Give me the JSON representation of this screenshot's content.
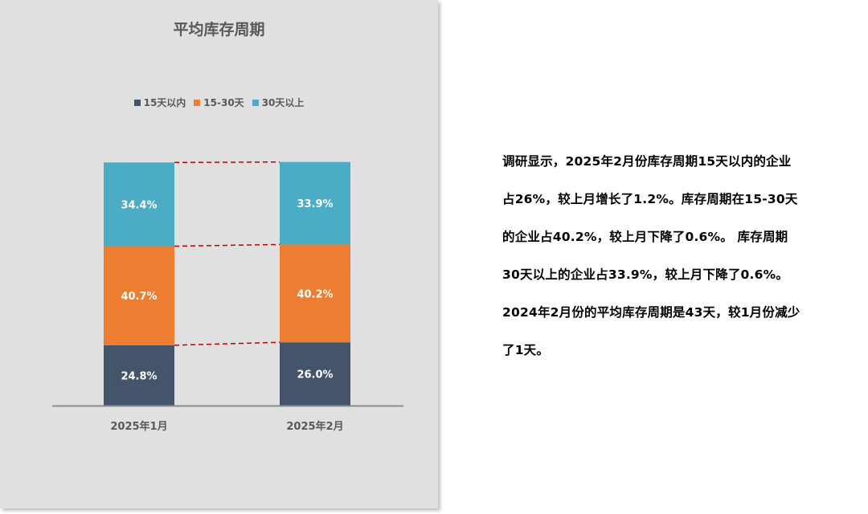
{
  "chart_data": {
    "type": "bar",
    "stacked": true,
    "percent": true,
    "title": "平均库存周期",
    "categories": [
      "2025年1月",
      "2025年2月"
    ],
    "series": [
      {
        "name": "15天以内",
        "values": [
          24.8,
          26.0
        ],
        "labels": [
          "24.8%",
          "26.0%"
        ],
        "color": "#44546a"
      },
      {
        "name": "15-30天",
        "values": [
          40.7,
          40.2
        ],
        "labels": [
          "40.7%",
          "40.2%"
        ],
        "color": "#ed7d31"
      },
      {
        "name": "30天以上",
        "values": [
          34.4,
          33.9
        ],
        "labels": [
          "34.4%",
          "33.9%"
        ],
        "color": "#4bacc6"
      }
    ],
    "series_lines": true,
    "series_line_color": "#c00000",
    "ylim": [
      0,
      100
    ],
    "legend": "top",
    "grid": false,
    "axis_color": "#8c8c8c",
    "background": "#e0e0e0"
  },
  "description": {
    "lines": [
      "调研显示，2025年2月份库存周期15天以内的企业",
      "占26%，较上月增长了1.2%。库存周期在15-30天",
      "的企业占40.2%，较上月下降了0.6%。 库存周期",
      "30天以上的企业占33.9%，较上月下降了0.6%。",
      "2024年2月份的平均库存周期是43天，较1月份减少",
      "了1天。"
    ]
  }
}
